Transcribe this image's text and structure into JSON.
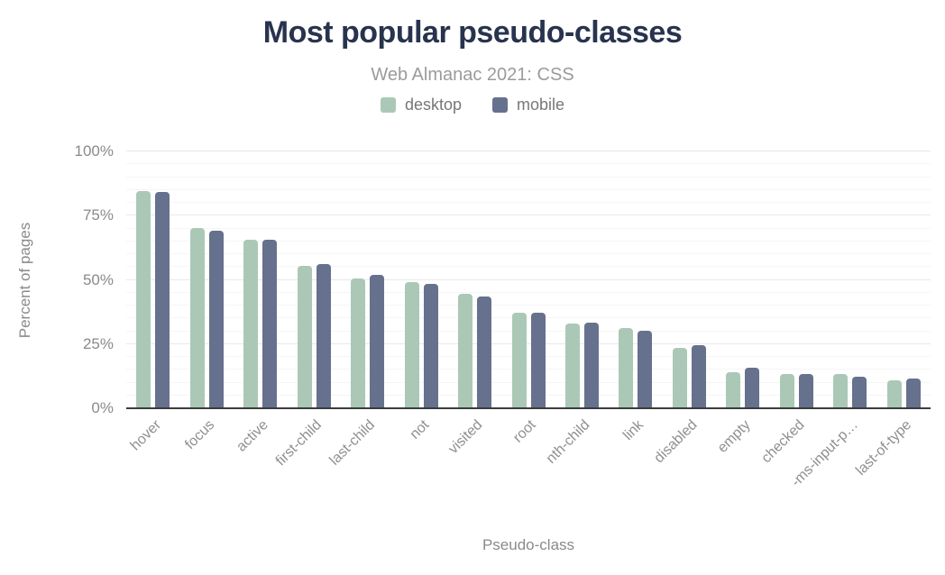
{
  "header": {
    "title": "Most popular pseudo-classes",
    "subtitle": "Web Almanac 2021: CSS"
  },
  "legend": {
    "position": "top",
    "items": [
      {
        "label": "desktop",
        "color": "#abc8b7"
      },
      {
        "label": "mobile",
        "color": "#66718d"
      }
    ]
  },
  "chart_data": {
    "type": "bar",
    "title": "Most popular pseudo-classes",
    "subtitle": "Web Almanac 2021: CSS",
    "xlabel": "Pseudo-class",
    "ylabel": "Percent of pages",
    "ylim": [
      0,
      100
    ],
    "yticks": [
      {
        "value": 0,
        "label": "0%"
      },
      {
        "value": 25,
        "label": "25%"
      },
      {
        "value": 50,
        "label": "50%"
      },
      {
        "value": 75,
        "label": "75%"
      },
      {
        "value": 100,
        "label": "100%"
      }
    ],
    "grid": true,
    "minor_gridline_step": 5,
    "major_gridline_step": 25,
    "legend_position": "top",
    "x_label_rotation_deg": -45,
    "categories": [
      "hover",
      "focus",
      "active",
      "first-child",
      "last-child",
      "not",
      "visited",
      "root",
      "nth-child",
      "link",
      "disabled",
      "empty",
      "checked",
      "-ms-input-p…",
      "last-of-type"
    ],
    "series": [
      {
        "name": "desktop",
        "color": "#abc8b7",
        "values": [
          84.5,
          70.1,
          65.6,
          55.6,
          50.4,
          49.2,
          44.5,
          37.1,
          33.1,
          31.3,
          23.6,
          13.9,
          13.3,
          13.2,
          10.9
        ]
      },
      {
        "name": "mobile",
        "color": "#66718d",
        "values": [
          84.3,
          69.3,
          65.5,
          56.3,
          52.1,
          48.5,
          43.5,
          37.2,
          33.2,
          30.1,
          24.4,
          15.8,
          13.4,
          12.4,
          11.6
        ]
      }
    ]
  },
  "colors": {
    "background": "#ffffff",
    "title_text": "#28334e",
    "subtitle_text": "#9b9b9b",
    "axis_text": "#8a8a8a",
    "axis_line": "#3c3c3c",
    "gridline_minor": "#f5f5f5",
    "gridline_major": "#e8e8e8",
    "desktop_bar": "#abc8b7",
    "mobile_bar": "#66718d"
  }
}
